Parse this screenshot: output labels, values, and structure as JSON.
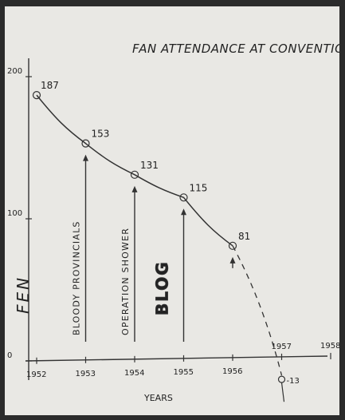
{
  "chart_data": {
    "type": "line",
    "title": "FAN ATTENDANCE AT CONVENTIONS",
    "xlabel": "YEARS",
    "ylabel": "FEN",
    "x_ticks": [
      "1952",
      "1953",
      "1954",
      "1955",
      "1956",
      "1957",
      "1958"
    ],
    "y_ticks": [
      "0",
      "100",
      "200"
    ],
    "ylim": [
      0,
      200
    ],
    "series": [
      {
        "points": [
          {
            "x": 1952,
            "y": 187,
            "label": "187"
          },
          {
            "x": 1953,
            "y": 153,
            "label": "153"
          },
          {
            "x": 1954,
            "y": 131,
            "label": "131"
          },
          {
            "x": 1955,
            "y": 115,
            "label": "115"
          },
          {
            "x": 1956,
            "y": 81,
            "label": "81"
          }
        ]
      }
    ],
    "projection": {
      "x": 1957,
      "y": -13,
      "label": "-13",
      "style": "dashed"
    },
    "annotations": [
      {
        "x": 1953,
        "text": "BLOODY PROVINCIALS"
      },
      {
        "x": 1954,
        "text": "OPERATION SHOWER"
      },
      {
        "x": 1955,
        "text": "BLOG"
      },
      {
        "x": 1956,
        "text": ""
      }
    ],
    "grid": false
  }
}
